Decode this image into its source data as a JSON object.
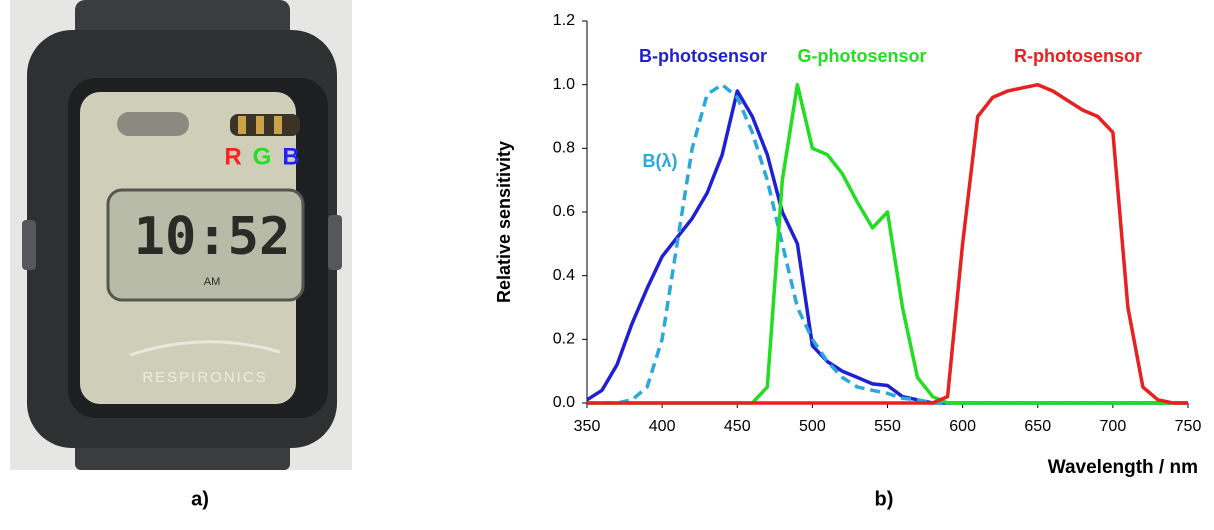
{
  "photo": {
    "sensor_labels": [
      "R",
      "G",
      "B"
    ],
    "sensor_colors": [
      "#ff2020",
      "#20e020",
      "#2020ff"
    ],
    "time": "10:52",
    "period": "AM",
    "brand": "RESPIRONICS"
  },
  "panel_labels": [
    "a)",
    "b)"
  ],
  "chart_data": {
    "type": "line",
    "y_label": "Relative sensitivity",
    "x_label": "Wavelength / nm",
    "x": [
      350,
      360,
      370,
      380,
      390,
      400,
      410,
      420,
      430,
      440,
      450,
      460,
      470,
      480,
      490,
      500,
      510,
      520,
      530,
      540,
      550,
      560,
      570,
      580,
      590,
      600,
      610,
      620,
      630,
      640,
      650,
      660,
      670,
      680,
      690,
      700,
      710,
      720,
      730,
      740,
      750
    ],
    "series": [
      {
        "name": "B-photosensor",
        "color": "#1f1fd6",
        "style": "solid",
        "values": [
          0.01,
          0.04,
          0.12,
          0.25,
          0.36,
          0.46,
          0.52,
          0.58,
          0.66,
          0.78,
          0.98,
          0.9,
          0.78,
          0.6,
          0.5,
          0.18,
          0.13,
          0.1,
          0.08,
          0.06,
          0.055,
          0.02,
          0.01,
          0,
          0,
          0,
          0,
          0,
          0,
          0,
          0,
          0,
          0,
          0,
          0,
          0,
          0,
          0,
          0,
          0,
          0
        ]
      },
      {
        "name": "B(λ)",
        "color": "#2aa8dc",
        "style": "dashed",
        "values": [
          0,
          0,
          0,
          0.01,
          0.05,
          0.2,
          0.5,
          0.8,
          0.97,
          1.0,
          0.96,
          0.85,
          0.7,
          0.5,
          0.3,
          0.2,
          0.13,
          0.08,
          0.05,
          0.04,
          0.03,
          0.015,
          0.01,
          0,
          0,
          0,
          0,
          0,
          0,
          0,
          0,
          0,
          0,
          0,
          0,
          0,
          0,
          0,
          0,
          0,
          0
        ]
      },
      {
        "name": "G-photosensor",
        "color": "#22dd22",
        "style": "solid",
        "values": [
          0,
          0,
          0,
          0,
          0,
          0,
          0,
          0,
          0,
          0,
          0,
          0,
          0.05,
          0.7,
          1.0,
          0.8,
          0.78,
          0.72,
          0.63,
          0.55,
          0.6,
          0.3,
          0.08,
          0.02,
          0,
          0,
          0,
          0,
          0,
          0,
          0,
          0,
          0,
          0,
          0,
          0,
          0,
          0,
          0,
          0,
          0
        ]
      },
      {
        "name": "R-photosensor",
        "color": "#e82020",
        "style": "solid",
        "values": [
          0,
          0,
          0,
          0,
          0,
          0,
          0,
          0,
          0,
          0,
          0,
          0,
          0,
          0,
          0,
          0,
          0,
          0,
          0,
          0,
          0,
          0,
          0,
          0,
          0.02,
          0.5,
          0.9,
          0.96,
          0.98,
          0.99,
          1.0,
          0.98,
          0.95,
          0.92,
          0.9,
          0.85,
          0.3,
          0.05,
          0.01,
          0,
          0
        ]
      }
    ],
    "xlim": [
      350,
      750
    ],
    "xticks": [
      350,
      400,
      450,
      500,
      550,
      600,
      650,
      700,
      750
    ],
    "ylim": [
      0,
      1.2
    ],
    "yticks": [
      {
        "value": 0,
        "label": "0.0"
      },
      0.2,
      0.4,
      0.6,
      0.8,
      {
        "value": 1,
        "label": "1.0"
      },
      1.2
    ]
  }
}
